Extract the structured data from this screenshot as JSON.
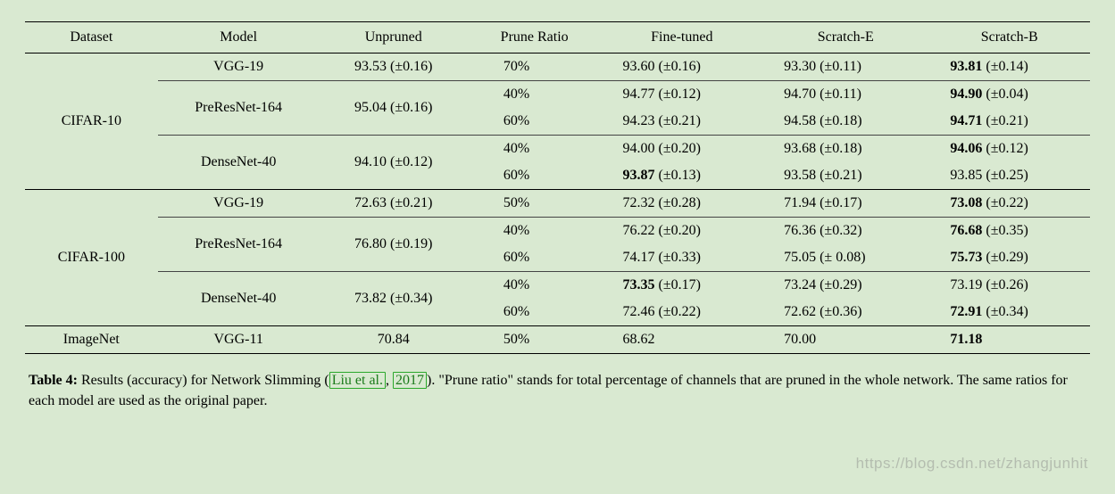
{
  "table": {
    "headers": [
      "Dataset",
      "Model",
      "Unpruned",
      "Prune Ratio",
      "Fine-tuned",
      "Scratch-E",
      "Scratch-B"
    ],
    "sections": [
      {
        "dataset": "CIFAR-10",
        "rowspan": 5,
        "groups": [
          {
            "model": "VGG-19",
            "unpruned": "93.53 (±0.16)",
            "rows": [
              {
                "ratio": "70%",
                "ft": "93.60 (±0.16)",
                "ft_bold": false,
                "se": "93.30 (±0.11)",
                "se_bold": false,
                "sb": "93.81 (±0.14)",
                "sb_bold": true
              }
            ]
          },
          {
            "model": "PreResNet-164",
            "unpruned": "95.04 (±0.16)",
            "rows": [
              {
                "ratio": "40%",
                "ft": "94.77 (±0.12)",
                "ft_bold": false,
                "se": "94.70 (±0.11)",
                "se_bold": false,
                "sb": "94.90 (±0.04)",
                "sb_bold": true
              },
              {
                "ratio": "60%",
                "ft": "94.23 (±0.21)",
                "ft_bold": false,
                "se": "94.58 (±0.18)",
                "se_bold": false,
                "sb": "94.71 (±0.21)",
                "sb_bold": true
              }
            ]
          },
          {
            "model": "DenseNet-40",
            "unpruned": "94.10 (±0.12)",
            "rows": [
              {
                "ratio": "40%",
                "ft": "94.00 (±0.20)",
                "ft_bold": false,
                "se": "93.68 (±0.18)",
                "se_bold": false,
                "sb": "94.06 (±0.12)",
                "sb_bold": true
              },
              {
                "ratio": "60%",
                "ft": "93.87 (±0.13)",
                "ft_bold": true,
                "se": "93.58 (±0.21)",
                "se_bold": false,
                "sb": "93.85 (±0.25)",
                "sb_bold": false
              }
            ]
          }
        ]
      },
      {
        "dataset": "CIFAR-100",
        "rowspan": 5,
        "groups": [
          {
            "model": "VGG-19",
            "unpruned": "72.63 (±0.21)",
            "rows": [
              {
                "ratio": "50%",
                "ft": "72.32 (±0.28)",
                "ft_bold": false,
                "se": "71.94 (±0.17)",
                "se_bold": false,
                "sb": "73.08 (±0.22)",
                "sb_bold": true
              }
            ]
          },
          {
            "model": "PreResNet-164",
            "unpruned": "76.80 (±0.19)",
            "rows": [
              {
                "ratio": "40%",
                "ft": "76.22 (±0.20)",
                "ft_bold": false,
                "se": "76.36 (±0.32)",
                "se_bold": false,
                "sb": "76.68 (±0.35)",
                "sb_bold": true
              },
              {
                "ratio": "60%",
                "ft": "74.17 (±0.33)",
                "ft_bold": false,
                "se": "75.05 (± 0.08)",
                "se_bold": false,
                "sb": "75.73 (±0.29)",
                "sb_bold": true
              }
            ]
          },
          {
            "model": "DenseNet-40",
            "unpruned": "73.82 (±0.34)",
            "rows": [
              {
                "ratio": "40%",
                "ft": "73.35 (±0.17)",
                "ft_bold": true,
                "se": "73.24 (±0.29)",
                "se_bold": false,
                "sb": "73.19 (±0.26)",
                "sb_bold": false
              },
              {
                "ratio": "60%",
                "ft": "72.46 (±0.22)",
                "ft_bold": false,
                "se": "72.62 (±0.36)",
                "se_bold": false,
                "sb": "72.91 (±0.34)",
                "sb_bold": true
              }
            ]
          }
        ]
      },
      {
        "dataset": "ImageNet",
        "rowspan": 1,
        "groups": [
          {
            "model": "VGG-11",
            "unpruned": "70.84",
            "rows": [
              {
                "ratio": "50%",
                "ft": "68.62",
                "ft_bold": false,
                "se": "70.00",
                "se_bold": false,
                "sb": "71.18",
                "sb_bold": true
              }
            ]
          }
        ]
      }
    ]
  },
  "caption": {
    "label": "Table 4:",
    "text_before_cite": " Results (accuracy) for Network Slimming (",
    "cite_author": "Liu et al.",
    "cite_year": "2017",
    "text_after_cite": "). \"Prune ratio\" stands for total percentage of channels that are pruned in the whole network. The same ratios for each model are used as the original paper."
  },
  "watermark": "https://blog.csdn.net/zhangjunhit",
  "style": {
    "background_color": "#d9e9d1",
    "border_color": "#000000",
    "cite_color": "#1a7a1a",
    "font_family": "Times New Roman",
    "font_size_body": 16,
    "font_size_caption": 16
  }
}
